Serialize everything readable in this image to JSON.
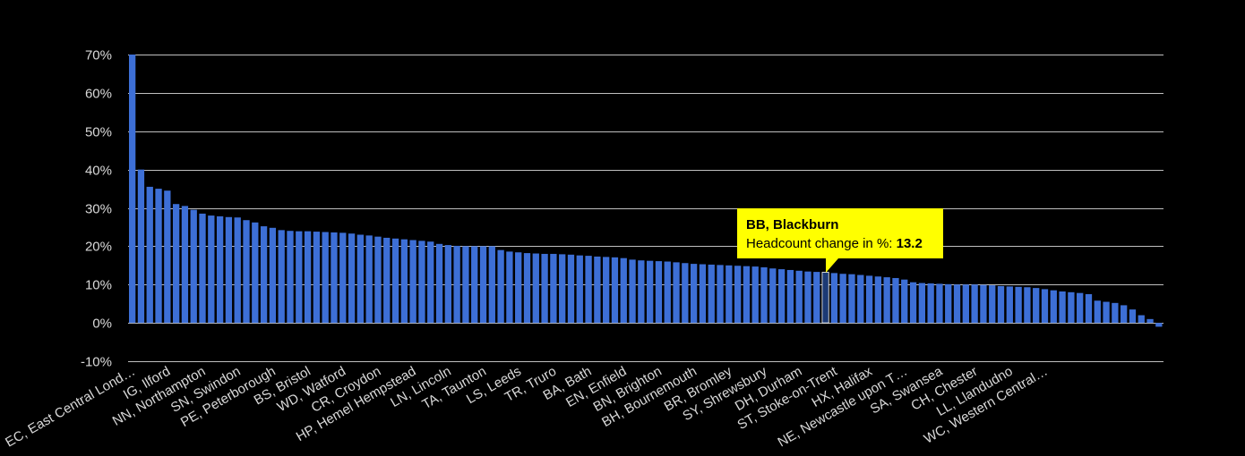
{
  "chart_data": {
    "type": "bar",
    "ylim": [
      -10,
      70
    ],
    "yticks": [
      -10,
      0,
      10,
      20,
      30,
      40,
      50,
      60,
      70
    ],
    "ytick_labels": [
      "-10%",
      "0%",
      "10%",
      "20%",
      "30%",
      "40%",
      "50%",
      "60%",
      "70%"
    ],
    "bar_color": "#3d6fd6",
    "highlight_color": "#1c3a75",
    "grid_color": "#bfbfbf",
    "text_color": "#d9d9d9",
    "grid": true,
    "values": [
      70.0,
      40.0,
      35.5,
      35.0,
      34.5,
      31.0,
      30.5,
      29.5,
      28.5,
      28.0,
      27.8,
      27.6,
      27.5,
      26.8,
      26.2,
      25.2,
      24.8,
      24.2,
      24.0,
      23.9,
      23.9,
      23.8,
      23.7,
      23.6,
      23.5,
      23.3,
      23.0,
      22.8,
      22.5,
      22.2,
      22.0,
      21.8,
      21.6,
      21.4,
      21.2,
      20.6,
      20.3,
      20.1,
      20.0,
      20.0,
      20.0,
      20.0,
      19.0,
      18.6,
      18.4,
      18.2,
      18.1,
      18.0,
      18.0,
      17.9,
      17.8,
      17.6,
      17.5,
      17.3,
      17.2,
      17.1,
      16.9,
      16.5,
      16.3,
      16.2,
      16.1,
      16.0,
      15.8,
      15.6,
      15.4,
      15.3,
      15.2,
      15.1,
      15.0,
      14.9,
      14.8,
      14.7,
      14.5,
      14.2,
      14.0,
      13.8,
      13.6,
      13.4,
      13.3,
      13.2,
      13.0,
      12.8,
      12.7,
      12.5,
      12.3,
      12.1,
      11.9,
      11.7,
      11.3,
      10.6,
      10.4,
      10.3,
      10.2,
      10.1,
      10.0,
      10.0,
      10.0,
      9.9,
      9.8,
      9.6,
      9.5,
      9.4,
      9.3,
      9.1,
      8.8,
      8.5,
      8.2,
      8.0,
      7.8,
      7.5,
      5.8,
      5.5,
      5.2,
      4.6,
      3.5,
      2.0,
      1.0,
      -1.0
    ],
    "highlight_index": 79,
    "x_labels": [
      {
        "index": 0,
        "text": "EC, East Central Lond…"
      },
      {
        "index": 4,
        "text": "IG, Ilford"
      },
      {
        "index": 8,
        "text": "NN, Northampton"
      },
      {
        "index": 12,
        "text": "SN, Swindon"
      },
      {
        "index": 16,
        "text": "PE, Peterborough"
      },
      {
        "index": 20,
        "text": "BS, Bristol"
      },
      {
        "index": 24,
        "text": "WD, Watford"
      },
      {
        "index": 28,
        "text": "CR, Croydon"
      },
      {
        "index": 32,
        "text": "HP, Hemel Hempstead"
      },
      {
        "index": 36,
        "text": "LN, Lincoln"
      },
      {
        "index": 40,
        "text": "TA, Taunton"
      },
      {
        "index": 44,
        "text": "LS, Leeds"
      },
      {
        "index": 48,
        "text": "TR, Truro"
      },
      {
        "index": 52,
        "text": "BA, Bath"
      },
      {
        "index": 56,
        "text": "EN, Enfield"
      },
      {
        "index": 60,
        "text": "BN, Brighton"
      },
      {
        "index": 64,
        "text": "BH, Bournemouth"
      },
      {
        "index": 68,
        "text": "BR, Bromley"
      },
      {
        "index": 72,
        "text": "SY, Shrewsbury"
      },
      {
        "index": 76,
        "text": "DH, Durham"
      },
      {
        "index": 80,
        "text": "ST, Stoke-on-Trent"
      },
      {
        "index": 84,
        "text": "HX, Halifax"
      },
      {
        "index": 88,
        "text": "NE, Newcastle upon T…"
      },
      {
        "index": 92,
        "text": "SA, Swansea"
      },
      {
        "index": 96,
        "text": "CH, Chester"
      },
      {
        "index": 100,
        "text": "LL, Llandudno"
      },
      {
        "index": 104,
        "text": "WC, Western Central…"
      }
    ]
  },
  "tooltip": {
    "title": "BB, Blackburn",
    "label": "Headcount change in %: ",
    "value": "13.2"
  }
}
